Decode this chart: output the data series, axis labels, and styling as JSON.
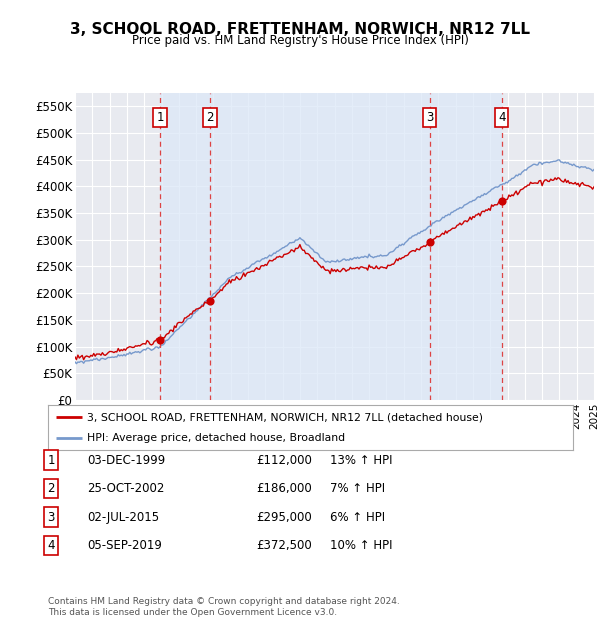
{
  "title": "3, SCHOOL ROAD, FRETTENHAM, NORWICH, NR12 7LL",
  "subtitle": "Price paid vs. HM Land Registry's House Price Index (HPI)",
  "ylim": [
    0,
    575000
  ],
  "yticks": [
    0,
    50000,
    100000,
    150000,
    200000,
    250000,
    300000,
    350000,
    400000,
    450000,
    500000,
    550000
  ],
  "ytick_labels": [
    "£0",
    "£50K",
    "£100K",
    "£150K",
    "£200K",
    "£250K",
    "£300K",
    "£350K",
    "£400K",
    "£450K",
    "£500K",
    "£550K"
  ],
  "background_color": "#ffffff",
  "plot_bg_color": "#e8eaf0",
  "grid_color": "#ffffff",
  "price_line_color": "#cc0000",
  "hpi_line_color": "#7799cc",
  "sale_marker_color": "#cc0000",
  "dashed_line_color": "#dd4444",
  "shade_color": "#dce8f8",
  "sales": [
    {
      "date": "1999-12-03",
      "price": 112000,
      "label": "1"
    },
    {
      "date": "2002-10-25",
      "price": 186000,
      "label": "2"
    },
    {
      "date": "2015-07-02",
      "price": 295000,
      "label": "3"
    },
    {
      "date": "2019-09-05",
      "price": 372500,
      "label": "4"
    }
  ],
  "table_rows": [
    {
      "num": "1",
      "date": "03-DEC-1999",
      "price": "£112,000",
      "hpi": "13% ↑ HPI"
    },
    {
      "num": "2",
      "date": "25-OCT-2002",
      "price": "£186,000",
      "hpi": "7% ↑ HPI"
    },
    {
      "num": "3",
      "date": "02-JUL-2015",
      "price": "£295,000",
      "hpi": "6% ↑ HPI"
    },
    {
      "num": "4",
      "date": "05-SEP-2019",
      "price": "£372,500",
      "hpi": "10% ↑ HPI"
    }
  ],
  "legend_price_label": "3, SCHOOL ROAD, FRETTENHAM, NORWICH, NR12 7LL (detached house)",
  "legend_hpi_label": "HPI: Average price, detached house, Broadland",
  "footnote": "Contains HM Land Registry data © Crown copyright and database right 2024.\nThis data is licensed under the Open Government Licence v3.0.",
  "x_start_year": 1995,
  "x_end_year": 2025,
  "sale_dates_num": [
    1999.92,
    2002.81,
    2015.5,
    2019.67
  ],
  "sale_prices": [
    112000,
    186000,
    295000,
    372500
  ]
}
